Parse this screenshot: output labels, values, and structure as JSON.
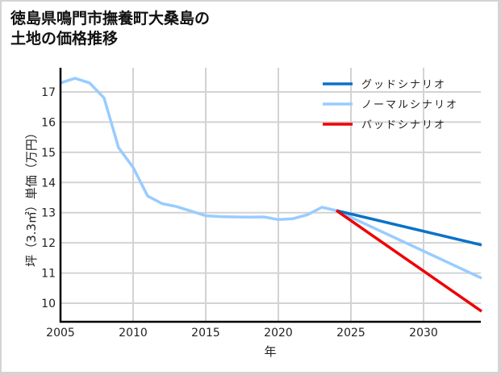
{
  "title": "徳島県鳴門市撫養町大桑島の\n土地の価格推移",
  "chart_data": {
    "type": "line",
    "title": "徳島県鳴門市撫養町大桑島の土地の価格推移",
    "xlabel": "年",
    "ylabel": "坪（3.3㎡）単価（万円）",
    "xlim": [
      2005,
      2034
    ],
    "ylim": [
      9.35,
      17.8
    ],
    "xticks": [
      2005,
      2010,
      2015,
      2020,
      2025,
      2030
    ],
    "yticks": [
      10,
      11,
      12,
      13,
      14,
      15,
      16,
      17
    ],
    "grid": true,
    "legend_position": "upper right",
    "series": [
      {
        "name": "グッドシナリオ",
        "color": "#0a72c8",
        "x": [
          2024,
          2034
        ],
        "values": [
          13.07,
          11.93
        ]
      },
      {
        "name": "ノーマルシナリオ",
        "color": "#99ccff",
        "x": [
          2005,
          2006,
          2007,
          2008,
          2009,
          2010,
          2011,
          2012,
          2013,
          2014,
          2015,
          2016,
          2017,
          2018,
          2019,
          2020,
          2021,
          2022,
          2023,
          2024,
          2034
        ],
        "values": [
          17.3,
          17.45,
          17.3,
          16.8,
          15.15,
          14.5,
          13.55,
          13.3,
          13.2,
          13.05,
          12.9,
          12.87,
          12.86,
          12.85,
          12.86,
          12.77,
          12.8,
          12.93,
          13.18,
          13.07,
          10.83
        ]
      },
      {
        "name": "バッドシナリオ",
        "color": "#ee0000",
        "x": [
          2024,
          2034
        ],
        "values": [
          13.07,
          9.73
        ]
      }
    ]
  }
}
